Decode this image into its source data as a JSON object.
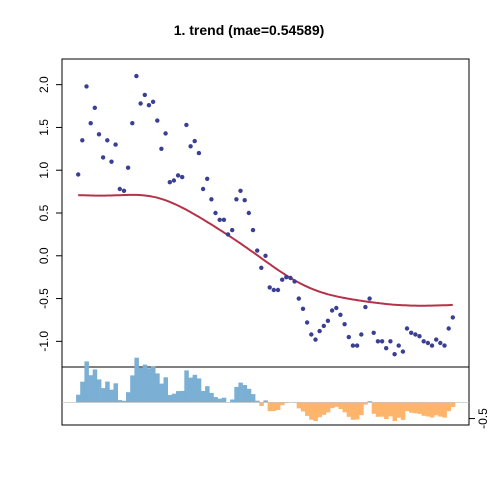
{
  "chart_data": {
    "type": "scatter",
    "title": "1. trend (mae=0.54589)",
    "xlabel": "",
    "ylabel": "",
    "main_panel": {
      "ylim": [
        -1.3,
        2.3
      ],
      "y_ticks": [
        -1.0,
        -0.5,
        0.0,
        0.5,
        1.0,
        1.5,
        2.0
      ],
      "y_tick_labels": [
        "-1.0",
        "-0.5",
        "0.0",
        "0.5",
        "1.0",
        "1.5",
        "2.0"
      ],
      "xlim": [
        0,
        92
      ],
      "points": [
        [
          1,
          0.95
        ],
        [
          2,
          1.35
        ],
        [
          3,
          1.98
        ],
        [
          4,
          1.55
        ],
        [
          5,
          1.73
        ],
        [
          6,
          1.42
        ],
        [
          7,
          1.15
        ],
        [
          8,
          1.35
        ],
        [
          9,
          1.1
        ],
        [
          10,
          1.3
        ],
        [
          11,
          0.78
        ],
        [
          12,
          0.76
        ],
        [
          13,
          1.03
        ],
        [
          14,
          1.55
        ],
        [
          15,
          2.1
        ],
        [
          16,
          1.78
        ],
        [
          17,
          1.88
        ],
        [
          18,
          1.76
        ],
        [
          19,
          1.8
        ],
        [
          20,
          1.58
        ],
        [
          21,
          1.25
        ],
        [
          22,
          1.43
        ],
        [
          23,
          0.86
        ],
        [
          24,
          0.88
        ],
        [
          25,
          0.94
        ],
        [
          26,
          0.92
        ],
        [
          27,
          1.53
        ],
        [
          28,
          1.28
        ],
        [
          29,
          1.34
        ],
        [
          30,
          1.2
        ],
        [
          31,
          0.78
        ],
        [
          32,
          0.9
        ],
        [
          33,
          0.66
        ],
        [
          34,
          0.5
        ],
        [
          35,
          0.42
        ],
        [
          36,
          0.42
        ],
        [
          37,
          0.25
        ],
        [
          38,
          0.3
        ],
        [
          39,
          0.66
        ],
        [
          40,
          0.76
        ],
        [
          41,
          0.65
        ],
        [
          42,
          0.5
        ],
        [
          43,
          0.3
        ],
        [
          44,
          0.06
        ],
        [
          45,
          -0.14
        ],
        [
          46,
          0.0
        ],
        [
          47,
          -0.37
        ],
        [
          48,
          -0.4
        ],
        [
          49,
          -0.4
        ],
        [
          50,
          -0.28
        ],
        [
          51,
          -0.25
        ],
        [
          52,
          -0.26
        ],
        [
          53,
          -0.3
        ],
        [
          54,
          -0.5
        ],
        [
          55,
          -0.62
        ],
        [
          56,
          -0.78
        ],
        [
          57,
          -0.92
        ],
        [
          58,
          -0.98
        ],
        [
          59,
          -0.88
        ],
        [
          60,
          -0.82
        ],
        [
          61,
          -0.76
        ],
        [
          62,
          -0.64
        ],
        [
          63,
          -0.61
        ],
        [
          64,
          -0.69
        ],
        [
          65,
          -0.8
        ],
        [
          66,
          -0.95
        ],
        [
          67,
          -1.05
        ],
        [
          68,
          -1.05
        ],
        [
          69,
          -0.92
        ],
        [
          70,
          -0.6
        ],
        [
          71,
          -0.5
        ],
        [
          72,
          -0.9
        ],
        [
          73,
          -1.0
        ],
        [
          74,
          -1.0
        ],
        [
          75,
          -1.08
        ],
        [
          76,
          -1.0
        ],
        [
          77,
          -1.15
        ],
        [
          78,
          -1.05
        ],
        [
          79,
          -1.12
        ],
        [
          80,
          -0.85
        ],
        [
          81,
          -0.9
        ],
        [
          82,
          -0.92
        ],
        [
          83,
          -0.94
        ],
        [
          84,
          -1.0
        ],
        [
          85,
          -1.02
        ],
        [
          86,
          -1.05
        ],
        [
          87,
          -0.98
        ],
        [
          88,
          -1.02
        ],
        [
          89,
          -1.05
        ],
        [
          90,
          -0.85
        ],
        [
          91,
          -0.72
        ]
      ],
      "trend_color": "#b5334a",
      "point_color": "#3a3f94"
    },
    "residual_panel": {
      "ylim": [
        -0.7,
        1.1
      ],
      "y_ticks": [
        -0.5
      ],
      "y_tick_labels": [
        "-0.5"
      ],
      "positive_color": "#7bafd4",
      "negative_color": "#fdb46b"
    }
  }
}
